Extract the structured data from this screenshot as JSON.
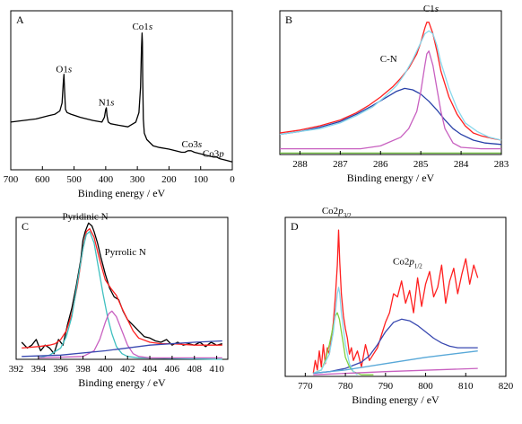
{
  "chart_data": [
    {
      "type": "line",
      "panel_label": "A",
      "xlabel": "Binding energy / eV",
      "xlim": [
        700,
        0
      ],
      "ylim": [
        0,
        100
      ],
      "xticks": [
        "700",
        "600",
        "500",
        "400",
        "300",
        "200",
        "100",
        "0"
      ],
      "xtick_values": [
        700,
        600,
        500,
        400,
        300,
        200,
        100,
        0
      ],
      "annotations": [
        {
          "parts": [
            {
              "t": "O1"
            },
            {
              "t": "s",
              "i": true
            }
          ],
          "x": 532,
          "y": 59
        },
        {
          "parts": [
            {
              "t": "N1"
            },
            {
              "t": "s",
              "i": true
            }
          ],
          "x": 398,
          "y": 38
        },
        {
          "parts": [
            {
              "t": "Co1"
            },
            {
              "t": "s",
              "i": true
            }
          ],
          "x": 284,
          "y": 86
        },
        {
          "parts": [
            {
              "t": "Co3"
            },
            {
              "t": "s",
              "i": true
            }
          ],
          "x": 128,
          "y": 12
        },
        {
          "parts": [
            {
              "t": "Co3"
            },
            {
              "t": "p",
              "i": true
            }
          ],
          "x": 60,
          "y": 6
        }
      ],
      "series": [
        {
          "color": "#000000",
          "x": [
            700,
            660,
            620,
            580,
            560,
            545,
            538,
            534,
            532,
            530,
            527,
            522,
            510,
            480,
            440,
            412,
            404,
            400,
            398,
            396,
            392,
            385,
            360,
            330,
            305,
            295,
            290,
            287,
            285,
            284,
            283,
            281,
            278,
            270,
            250,
            230,
            200,
            180,
            160,
            150,
            140,
            130,
            120,
            100,
            80,
            60,
            50,
            40,
            20,
            0
          ],
          "y": [
            30,
            31,
            32,
            34,
            35,
            37,
            42,
            55,
            60,
            50,
            38,
            36,
            35,
            33,
            31,
            30,
            33,
            38,
            39,
            34,
            30,
            29,
            28,
            27,
            30,
            36,
            52,
            76,
            86,
            80,
            58,
            32,
            23,
            19,
            15,
            14,
            13,
            12,
            11,
            11,
            12,
            12,
            11,
            10,
            9,
            8,
            8,
            7,
            6,
            5
          ]
        }
      ]
    },
    {
      "type": "line",
      "panel_label": "B",
      "xlabel": "Binding energy / eV",
      "xlim": [
        288.5,
        283
      ],
      "ylim": [
        0,
        100
      ],
      "xticks": [
        "288",
        "287",
        "286",
        "285",
        "284",
        "283"
      ],
      "xtick_values": [
        288,
        287,
        286,
        285,
        284,
        283
      ],
      "annotations": [
        {
          "parts": [
            {
              "t": "C1"
            },
            {
              "t": "s",
              "i": true
            }
          ],
          "x": 284.75,
          "y": 97
        },
        {
          "parts": [
            {
              "t": "C-N"
            }
          ],
          "x": 285.8,
          "y": 62
        }
      ],
      "series": [
        {
          "color": "#ff2020",
          "x": [
            288.5,
            288,
            287.5,
            287,
            286.6,
            286.3,
            286,
            285.7,
            285.5,
            285.3,
            285.1,
            285,
            284.9,
            284.85,
            284.8,
            284.7,
            284.6,
            284.5,
            284.3,
            284.1,
            283.9,
            283.7,
            283.5,
            283.2,
            283
          ],
          "y": [
            15,
            17,
            20,
            24,
            29,
            34,
            40,
            47,
            53,
            60,
            70,
            78,
            88,
            92,
            92,
            84,
            72,
            58,
            40,
            28,
            20,
            15,
            13,
            11,
            10
          ]
        },
        {
          "color": "#2840a8",
          "x": [
            288.5,
            288,
            287.5,
            287,
            286.6,
            286.2,
            285.9,
            285.6,
            285.4,
            285.2,
            285,
            284.8,
            284.6,
            284.4,
            284.2,
            284,
            283.7,
            283.4,
            283
          ],
          "y": [
            14,
            16,
            19,
            23,
            28,
            34,
            39,
            44,
            46,
            45,
            42,
            37,
            31,
            24,
            18,
            14,
            10,
            8,
            7
          ]
        },
        {
          "color": "#88d8ec",
          "x": [
            288.5,
            288,
            287.5,
            287,
            286.6,
            286.2,
            285.9,
            285.6,
            285.4,
            285.2,
            285,
            284.9,
            284.8,
            284.7,
            284.6,
            284.5,
            284.3,
            284.1,
            283.9,
            283.6,
            283.3,
            283
          ],
          "y": [
            14,
            16,
            18,
            22,
            27,
            33,
            40,
            48,
            56,
            66,
            78,
            84,
            86,
            84,
            76,
            64,
            46,
            32,
            22,
            16,
            12,
            10
          ]
        },
        {
          "color": "#c860c0",
          "x": [
            288.5,
            286.5,
            286,
            285.5,
            285.3,
            285.1,
            285,
            284.9,
            284.85,
            284.8,
            284.7,
            284.6,
            284.5,
            284.4,
            284.2,
            284,
            283.5,
            283
          ],
          "y": [
            4,
            4,
            6,
            12,
            18,
            30,
            44,
            62,
            70,
            72,
            62,
            46,
            30,
            18,
            8,
            5,
            4,
            4
          ]
        },
        {
          "color": "#70c040",
          "x": [
            288.5,
            283
          ],
          "y": [
            1,
            1
          ]
        }
      ]
    },
    {
      "type": "line",
      "panel_label": "C",
      "xlabel": "Binding energy / eV",
      "xlim": [
        392,
        411
      ],
      "ylim": [
        0,
        100
      ],
      "xticks": [
        "392",
        "394",
        "396",
        "398",
        "400",
        "402",
        "404",
        "406",
        "408",
        "410"
      ],
      "xtick_values": [
        392,
        394,
        396,
        398,
        400,
        402,
        404,
        406,
        408,
        410
      ],
      "annotations": [
        {
          "parts": [
            {
              "t": "Pyridinic N"
            }
          ],
          "x": 398.2,
          "y": 96
        },
        {
          "parts": [
            {
              "t": "Pyrrolic N"
            }
          ],
          "x": 401.8,
          "y": 71
        }
      ],
      "series": [
        {
          "color": "#000000",
          "x": [
            392.5,
            393,
            393.4,
            393.8,
            394.2,
            394.6,
            395,
            395.4,
            395.8,
            396.2,
            396.6,
            397,
            397.4,
            397.8,
            398,
            398.2,
            398.5,
            398.8,
            399,
            399.3,
            399.6,
            400,
            400.4,
            400.8,
            401.2,
            401.6,
            402,
            402.5,
            403,
            403.5,
            404,
            404.5,
            405,
            405.5,
            406,
            406.5,
            407,
            407.5,
            408,
            408.5,
            409,
            409.5,
            410,
            410.5
          ],
          "y": [
            12,
            8,
            10,
            14,
            6,
            10,
            8,
            4,
            14,
            10,
            24,
            36,
            52,
            70,
            84,
            90,
            96,
            94,
            90,
            82,
            72,
            60,
            50,
            44,
            42,
            34,
            28,
            24,
            20,
            16,
            15,
            13,
            12,
            14,
            10,
            12,
            10,
            11,
            10,
            12,
            9,
            12,
            10,
            11
          ]
        },
        {
          "color": "#ff2020",
          "x": [
            392.5,
            394,
            395,
            395.5,
            396,
            396.5,
            397,
            397.5,
            398,
            398.3,
            398.6,
            399,
            399.5,
            400,
            400.5,
            401,
            401.5,
            402,
            402.5,
            403,
            404,
            405,
            406,
            408,
            410.5
          ],
          "y": [
            8,
            9,
            10,
            11,
            14,
            20,
            32,
            52,
            78,
            90,
            92,
            86,
            70,
            56,
            50,
            45,
            36,
            28,
            20,
            15,
            12,
            11,
            11,
            10,
            10
          ]
        },
        {
          "color": "#40c0c0",
          "x": [
            394,
            395,
            396,
            396.5,
            397,
            397.5,
            398,
            398.3,
            398.6,
            399,
            399.4,
            399.8,
            400.2,
            400.6,
            401,
            401.5,
            402,
            403,
            410.5
          ],
          "y": [
            1,
            3,
            8,
            16,
            30,
            54,
            78,
            88,
            90,
            82,
            64,
            46,
            30,
            18,
            9,
            4,
            2,
            1,
            0
          ]
        },
        {
          "color": "#c860c0",
          "x": [
            394,
            398,
            399,
            399.5,
            400,
            400.3,
            400.6,
            401,
            401.5,
            402,
            402.5,
            403,
            404,
            410.5
          ],
          "y": [
            1,
            2,
            6,
            14,
            26,
            32,
            34,
            30,
            20,
            10,
            4,
            2,
            1,
            1
          ]
        },
        {
          "color": "#3848b0",
          "x": [
            392.5,
            396,
            400,
            404,
            408,
            410.5
          ],
          "y": [
            2,
            3,
            6,
            10,
            12,
            13
          ]
        }
      ]
    },
    {
      "type": "line",
      "panel_label": "D",
      "xlabel": "Binding energy / eV",
      "xlim": [
        765,
        820
      ],
      "ylim": [
        0,
        100
      ],
      "xticks": [
        "770",
        "780",
        "790",
        "800",
        "810",
        "820"
      ],
      "xtick_values": [
        770,
        780,
        790,
        800,
        810,
        820
      ],
      "annotations": [
        {
          "parts": [
            {
              "t": "Co2"
            },
            {
              "t": "p",
              "i": true
            },
            {
              "t": "3/2",
              "sub": true
            }
          ],
          "x": 777.8,
          "y": 100
        },
        {
          "parts": [
            {
              "t": "Co2"
            },
            {
              "t": "p",
              "i": true
            },
            {
              "t": "1/2",
              "sub": true
            }
          ],
          "x": 795.5,
          "y": 68
        }
      ],
      "series": [
        {
          "color": "#ff2020",
          "x": [
            772,
            772.5,
            773,
            773.5,
            774,
            774.5,
            775,
            775.5,
            776,
            776.5,
            777,
            777.5,
            778,
            778.3,
            778.6,
            779,
            779.5,
            780,
            780.5,
            781,
            781.5,
            782,
            783,
            784,
            785,
            786,
            787,
            788,
            789,
            790,
            791,
            792,
            793,
            794,
            795,
            796,
            797,
            798,
            799,
            800,
            801,
            802,
            803,
            804,
            805,
            806,
            807,
            808,
            809,
            810,
            811,
            812,
            813
          ],
          "y": [
            2,
            10,
            4,
            16,
            6,
            20,
            8,
            18,
            14,
            24,
            34,
            50,
            70,
            92,
            72,
            52,
            38,
            30,
            24,
            14,
            18,
            10,
            16,
            6,
            20,
            10,
            14,
            18,
            26,
            34,
            40,
            52,
            50,
            60,
            46,
            54,
            40,
            62,
            44,
            58,
            66,
            50,
            56,
            70,
            46,
            60,
            68,
            52,
            64,
            74,
            58,
            70,
            62
          ]
        },
        {
          "color": "#3848b0",
          "x": [
            772,
            776,
            780,
            784,
            786,
            788,
            790,
            792,
            794,
            796,
            798,
            800,
            802,
            804,
            806,
            808,
            810,
            813
          ],
          "y": [
            2,
            3,
            5,
            9,
            13,
            20,
            28,
            34,
            36,
            35,
            32,
            28,
            24,
            21,
            19,
            18,
            18,
            18
          ]
        },
        {
          "color": "#80d040",
          "x": [
            772,
            774,
            775,
            776,
            777,
            777.5,
            778,
            778.5,
            779,
            779.5,
            780,
            781,
            782,
            784,
            787
          ],
          "y": [
            2,
            4,
            10,
            20,
            32,
            38,
            40,
            36,
            28,
            20,
            12,
            6,
            3,
            1,
            1
          ]
        },
        {
          "color": "#88d8ec",
          "x": [
            772,
            774,
            776,
            777,
            777.5,
            778,
            778.3,
            778.6,
            779,
            780,
            781,
            782,
            783
          ],
          "y": [
            2,
            4,
            14,
            28,
            40,
            52,
            56,
            52,
            40,
            20,
            8,
            3,
            1
          ]
        },
        {
          "color": "#c860c0",
          "x": [
            772,
            790,
            813
          ],
          "y": [
            1,
            3,
            5
          ]
        },
        {
          "color": "#58a8d8",
          "x": [
            772,
            780,
            790,
            800,
            813
          ],
          "y": [
            2,
            4,
            8,
            12,
            16
          ]
        }
      ]
    }
  ]
}
